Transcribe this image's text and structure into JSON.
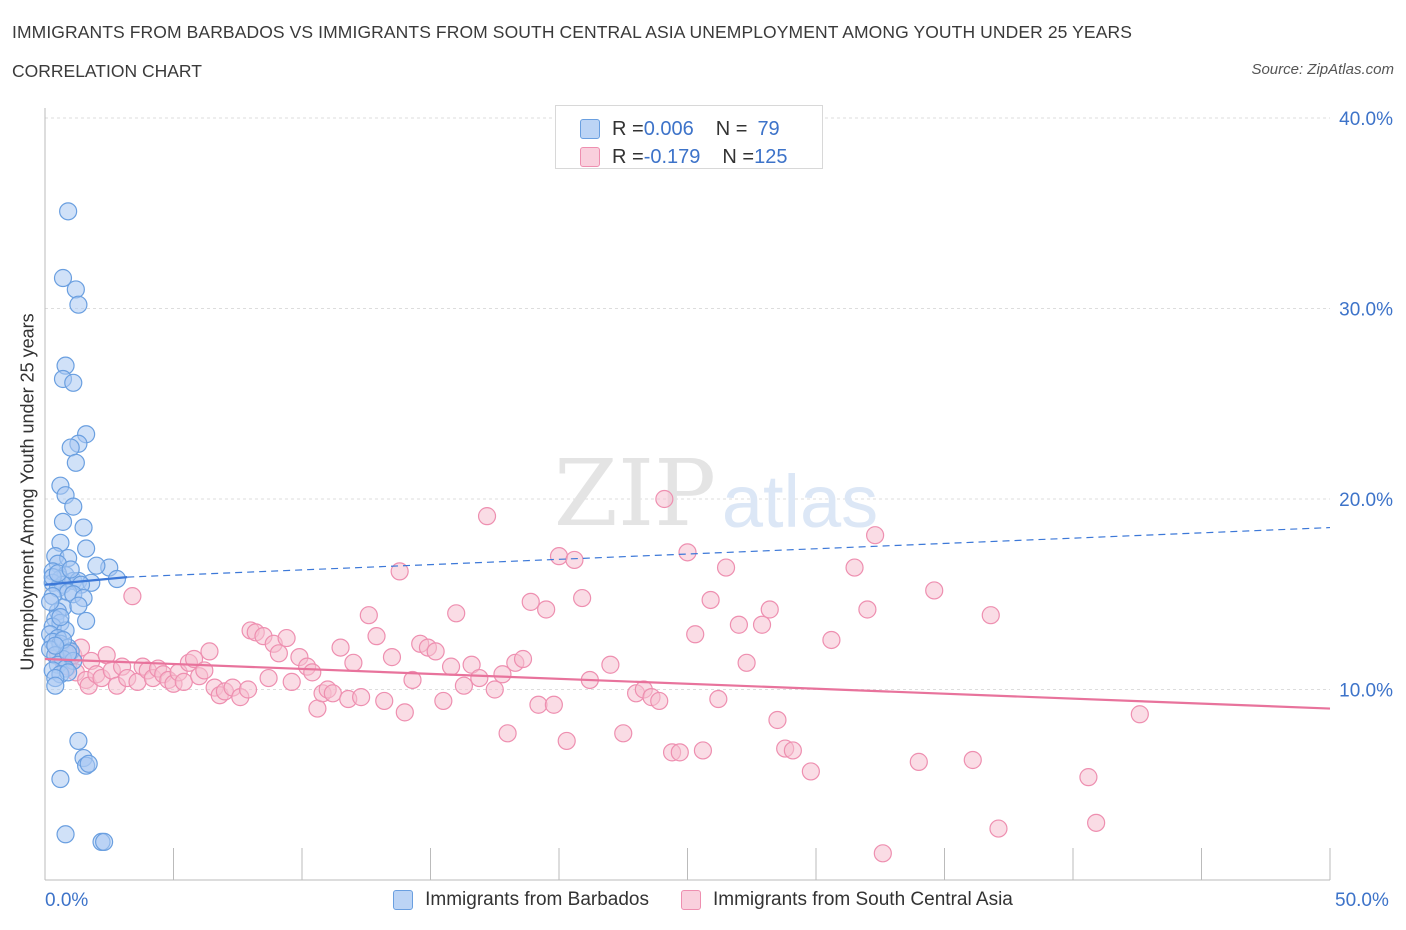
{
  "header": {
    "title": "IMMIGRANTS FROM BARBADOS VS IMMIGRANTS FROM SOUTH CENTRAL ASIA UNEMPLOYMENT AMONG YOUTH UNDER 25 YEARS",
    "subtitle": "CORRELATION CHART",
    "source": "Source: ZipAtlas.com"
  },
  "watermark": {
    "zip": "ZIP",
    "atlas": "atlas"
  },
  "legend_top": {
    "r_label": "R = ",
    "n_label": "N = ",
    "barbados": {
      "r": "0.006",
      "n": "79"
    },
    "sca": {
      "r": "-0.179",
      "n": "125"
    }
  },
  "colors": {
    "barbados_fill": "#a9c9f2",
    "barbados_stroke": "#6a9fe0",
    "barbados_line": "#3c78d8",
    "sca_fill": "#f6bfd0",
    "sca_stroke": "#ee8fb0",
    "sca_line": "#e8739c",
    "axis_text": "#3d73c9",
    "grid": "#dddddd"
  },
  "chart_data": {
    "type": "scatter",
    "title": "IMMIGRANTS FROM BARBADOS VS IMMIGRANTS FROM SOUTH CENTRAL ASIA UNEMPLOYMENT AMONG YOUTH UNDER 25 YEARS",
    "xlabel": "",
    "ylabel": "Unemployment Among Youth under 25 years",
    "xlim": [
      0,
      50
    ],
    "ylim": [
      0,
      40
    ],
    "x_tick_labels": [
      "0.0%",
      "50.0%"
    ],
    "y_ticks": [
      10,
      20,
      30,
      40
    ],
    "y_tick_labels": [
      "10.0%",
      "20.0%",
      "30.0%",
      "40.0%"
    ],
    "grid": true,
    "series": [
      {
        "name": "Immigrants from Barbados",
        "R": 0.006,
        "N": 79,
        "trend": {
          "x0": 0.0,
          "y0": 15.5,
          "x1": 3.2,
          "y1": 15.9,
          "x_dash_end": 50.0,
          "y_dash_end": 18.5
        },
        "points": [
          [
            0.9,
            35.1
          ],
          [
            0.7,
            31.6
          ],
          [
            1.2,
            31.0
          ],
          [
            1.3,
            30.2
          ],
          [
            0.8,
            27.0
          ],
          [
            0.7,
            26.3
          ],
          [
            1.1,
            26.1
          ],
          [
            1.6,
            23.4
          ],
          [
            1.3,
            22.9
          ],
          [
            1.0,
            22.7
          ],
          [
            1.2,
            21.9
          ],
          [
            0.6,
            20.7
          ],
          [
            0.8,
            20.2
          ],
          [
            1.1,
            19.6
          ],
          [
            0.7,
            18.8
          ],
          [
            1.5,
            18.5
          ],
          [
            0.6,
            17.7
          ],
          [
            1.6,
            17.4
          ],
          [
            0.4,
            17.0
          ],
          [
            0.9,
            16.9
          ],
          [
            0.5,
            16.6
          ],
          [
            2.5,
            16.4
          ],
          [
            2.0,
            16.5
          ],
          [
            0.3,
            16.2
          ],
          [
            0.8,
            16.0
          ],
          [
            0.6,
            15.8
          ],
          [
            1.1,
            15.7
          ],
          [
            1.3,
            15.7
          ],
          [
            2.8,
            15.8
          ],
          [
            1.8,
            15.6
          ],
          [
            0.3,
            15.6
          ],
          [
            0.7,
            15.5
          ],
          [
            1.4,
            15.5
          ],
          [
            0.5,
            15.3
          ],
          [
            0.9,
            15.1
          ],
          [
            1.1,
            15.0
          ],
          [
            0.3,
            14.9
          ],
          [
            1.5,
            14.8
          ],
          [
            0.7,
            14.3
          ],
          [
            0.5,
            14.1
          ],
          [
            1.3,
            14.4
          ],
          [
            0.4,
            13.7
          ],
          [
            0.6,
            13.5
          ],
          [
            1.6,
            13.6
          ],
          [
            0.3,
            13.3
          ],
          [
            0.8,
            13.1
          ],
          [
            0.2,
            12.9
          ],
          [
            0.5,
            12.7
          ],
          [
            0.3,
            12.5
          ],
          [
            0.6,
            12.4
          ],
          [
            0.9,
            12.2
          ],
          [
            1.0,
            12.0
          ],
          [
            0.2,
            12.1
          ],
          [
            0.4,
            11.8
          ],
          [
            0.7,
            11.6
          ],
          [
            1.1,
            11.5
          ],
          [
            0.5,
            11.3
          ],
          [
            0.8,
            11.1
          ],
          [
            0.3,
            11.0
          ],
          [
            0.6,
            10.8
          ],
          [
            0.9,
            10.9
          ],
          [
            0.4,
            10.6
          ],
          [
            0.4,
            10.2
          ],
          [
            1.3,
            7.3
          ],
          [
            1.5,
            6.4
          ],
          [
            1.6,
            6.0
          ],
          [
            1.7,
            6.1
          ],
          [
            0.6,
            5.3
          ],
          [
            0.8,
            2.4
          ],
          [
            2.2,
            2.0
          ],
          [
            2.3,
            2.0
          ],
          [
            0.2,
            14.6
          ],
          [
            0.3,
            15.9
          ],
          [
            0.5,
            16.1
          ],
          [
            0.6,
            13.8
          ],
          [
            0.7,
            12.6
          ],
          [
            0.9,
            11.9
          ],
          [
            0.4,
            12.3
          ],
          [
            1.0,
            16.3
          ]
        ]
      },
      {
        "name": "Immigrants from South Central Asia",
        "R": -0.179,
        "N": 125,
        "trend": {
          "x0": 0.0,
          "y0": 11.6,
          "x1": 50.0,
          "y1": 9.0
        },
        "points": [
          [
            0.5,
            11.9
          ],
          [
            0.7,
            11.5
          ],
          [
            0.9,
            11.2
          ],
          [
            1.0,
            12.0
          ],
          [
            1.1,
            11.8
          ],
          [
            1.2,
            10.9
          ],
          [
            1.4,
            12.2
          ],
          [
            1.6,
            10.5
          ],
          [
            1.7,
            10.2
          ],
          [
            1.8,
            11.5
          ],
          [
            2.0,
            10.8
          ],
          [
            2.2,
            10.6
          ],
          [
            2.4,
            11.8
          ],
          [
            2.6,
            11.0
          ],
          [
            2.8,
            10.2
          ],
          [
            3.0,
            11.2
          ],
          [
            3.2,
            10.6
          ],
          [
            3.4,
            14.9
          ],
          [
            3.6,
            10.4
          ],
          [
            3.8,
            11.2
          ],
          [
            4.0,
            11.0
          ],
          [
            4.2,
            10.6
          ],
          [
            4.4,
            11.1
          ],
          [
            4.6,
            10.8
          ],
          [
            4.8,
            10.5
          ],
          [
            5.0,
            10.3
          ],
          [
            5.2,
            10.9
          ],
          [
            5.4,
            10.4
          ],
          [
            5.6,
            11.4
          ],
          [
            5.8,
            11.6
          ],
          [
            6.0,
            10.7
          ],
          [
            6.2,
            11.0
          ],
          [
            6.4,
            12.0
          ],
          [
            6.6,
            10.1
          ],
          [
            6.8,
            9.7
          ],
          [
            7.0,
            9.9
          ],
          [
            7.3,
            10.1
          ],
          [
            7.6,
            9.6
          ],
          [
            7.9,
            10.0
          ],
          [
            8.0,
            13.1
          ],
          [
            8.2,
            13.0
          ],
          [
            8.5,
            12.8
          ],
          [
            8.7,
            10.6
          ],
          [
            8.9,
            12.4
          ],
          [
            9.1,
            11.9
          ],
          [
            9.4,
            12.7
          ],
          [
            9.6,
            10.4
          ],
          [
            9.9,
            11.7
          ],
          [
            10.2,
            11.2
          ],
          [
            10.4,
            10.9
          ],
          [
            10.6,
            9.0
          ],
          [
            10.8,
            9.8
          ],
          [
            11.0,
            10.0
          ],
          [
            11.2,
            9.8
          ],
          [
            11.5,
            12.2
          ],
          [
            11.8,
            9.5
          ],
          [
            12.0,
            11.4
          ],
          [
            12.3,
            9.6
          ],
          [
            12.6,
            13.9
          ],
          [
            12.9,
            12.8
          ],
          [
            13.2,
            9.4
          ],
          [
            13.5,
            11.7
          ],
          [
            13.8,
            16.2
          ],
          [
            14.0,
            8.8
          ],
          [
            14.3,
            10.5
          ],
          [
            14.6,
            12.4
          ],
          [
            14.9,
            12.2
          ],
          [
            15.2,
            12.0
          ],
          [
            15.5,
            9.4
          ],
          [
            15.8,
            11.2
          ],
          [
            16.0,
            14.0
          ],
          [
            16.3,
            10.2
          ],
          [
            16.6,
            11.3
          ],
          [
            16.9,
            10.6
          ],
          [
            17.2,
            19.1
          ],
          [
            17.5,
            10.0
          ],
          [
            17.8,
            10.8
          ],
          [
            18.0,
            7.7
          ],
          [
            18.3,
            11.4
          ],
          [
            18.6,
            11.6
          ],
          [
            18.9,
            14.6
          ],
          [
            19.2,
            9.2
          ],
          [
            19.5,
            14.2
          ],
          [
            19.8,
            9.2
          ],
          [
            20.0,
            17.0
          ],
          [
            20.3,
            7.3
          ],
          [
            20.6,
            16.8
          ],
          [
            20.9,
            14.8
          ],
          [
            21.2,
            10.5
          ],
          [
            22.0,
            11.3
          ],
          [
            22.5,
            7.7
          ],
          [
            23.0,
            9.8
          ],
          [
            23.3,
            10.0
          ],
          [
            23.6,
            9.6
          ],
          [
            23.9,
            9.4
          ],
          [
            24.1,
            20.0
          ],
          [
            24.4,
            6.7
          ],
          [
            24.7,
            6.7
          ],
          [
            25.0,
            17.2
          ],
          [
            25.3,
            12.9
          ],
          [
            25.6,
            6.8
          ],
          [
            25.9,
            14.7
          ],
          [
            26.2,
            9.5
          ],
          [
            26.5,
            16.4
          ],
          [
            27.0,
            13.4
          ],
          [
            27.3,
            11.4
          ],
          [
            27.9,
            13.4
          ],
          [
            28.2,
            14.2
          ],
          [
            28.5,
            8.4
          ],
          [
            28.8,
            6.9
          ],
          [
            29.1,
            6.8
          ],
          [
            29.8,
            5.7
          ],
          [
            30.6,
            12.6
          ],
          [
            31.5,
            16.4
          ],
          [
            32.0,
            14.2
          ],
          [
            32.3,
            18.1
          ],
          [
            32.6,
            1.4
          ],
          [
            34.0,
            6.2
          ],
          [
            34.6,
            15.2
          ],
          [
            36.1,
            6.3
          ],
          [
            36.8,
            13.9
          ],
          [
            37.1,
            2.7
          ],
          [
            40.6,
            5.4
          ],
          [
            40.9,
            3.0
          ],
          [
            42.6,
            8.7
          ]
        ]
      }
    ]
  },
  "legend_bottom": {
    "barbados_label": "Immigrants from Barbados",
    "sca_label": "Immigrants from South Central Asia"
  }
}
